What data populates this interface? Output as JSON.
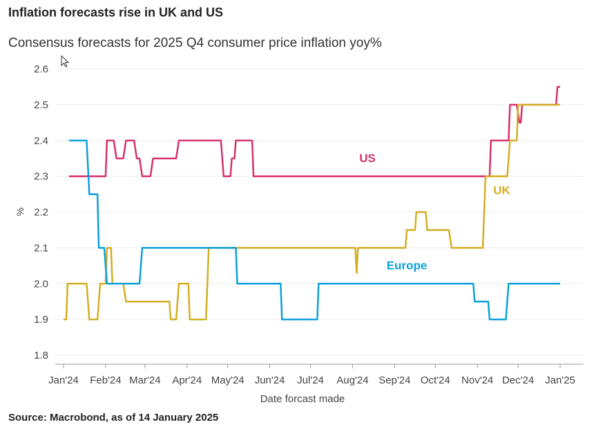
{
  "title": "Inflation forecasts rise in UK and US",
  "subtitle": "Consensus forecasts for 2025 Q4 consumer price inflation yoy%",
  "source": "Source: Macrobond, as of 14 January 2025",
  "chart_data": {
    "type": "line",
    "xlabel": "Date forcast made",
    "ylabel": "%",
    "ylim": [
      1.8,
      2.6
    ],
    "xlim": [
      "2024-01-01",
      "2025-01-01"
    ],
    "yticks": [
      "1.8",
      "1.9",
      "2.0",
      "2.1",
      "2.2",
      "2.3",
      "2.4",
      "2.5",
      "2.6"
    ],
    "xticks": [
      {
        "date": "2024-01-01",
        "label": "Jan'24"
      },
      {
        "date": "2024-02-01",
        "label": "Feb'24"
      },
      {
        "date": "2024-03-01",
        "label": "Mar'24"
      },
      {
        "date": "2024-04-01",
        "label": "Apr'24"
      },
      {
        "date": "2024-05-01",
        "label": "May'24"
      },
      {
        "date": "2024-06-01",
        "label": "Jun'24"
      },
      {
        "date": "2024-07-01",
        "label": "Jul'24"
      },
      {
        "date": "2024-08-01",
        "label": "Aug'24"
      },
      {
        "date": "2024-09-01",
        "label": "Sep'24"
      },
      {
        "date": "2024-10-01",
        "label": "Oct'24"
      },
      {
        "date": "2024-11-01",
        "label": "Nov'24"
      },
      {
        "date": "2024-12-01",
        "label": "Dec'24"
      },
      {
        "date": "2025-01-01",
        "label": "Jan'25"
      }
    ],
    "grid": true,
    "series": [
      {
        "name": "US",
        "color": "#d62f6e",
        "points": [
          [
            "2024-01-05",
            2.3
          ],
          [
            "2024-02-01",
            2.3
          ],
          [
            "2024-02-02",
            2.4
          ],
          [
            "2024-02-07",
            2.4
          ],
          [
            "2024-02-09",
            2.35
          ],
          [
            "2024-02-14",
            2.35
          ],
          [
            "2024-02-16",
            2.4
          ],
          [
            "2024-02-22",
            2.4
          ],
          [
            "2024-02-24",
            2.35
          ],
          [
            "2024-02-26",
            2.35
          ],
          [
            "2024-02-28",
            2.3
          ],
          [
            "2024-03-05",
            2.3
          ],
          [
            "2024-03-07",
            2.35
          ],
          [
            "2024-03-24",
            2.35
          ],
          [
            "2024-03-26",
            2.4
          ],
          [
            "2024-04-26",
            2.4
          ],
          [
            "2024-04-28",
            2.3
          ],
          [
            "2024-05-03",
            2.3
          ],
          [
            "2024-05-04",
            2.35
          ],
          [
            "2024-05-06",
            2.35
          ],
          [
            "2024-05-07",
            2.4
          ],
          [
            "2024-05-19",
            2.4
          ],
          [
            "2024-05-20",
            2.3
          ],
          [
            "2024-11-10",
            2.3
          ],
          [
            "2024-11-11",
            2.4
          ],
          [
            "2024-11-24",
            2.4
          ],
          [
            "2024-11-25",
            2.5
          ],
          [
            "2024-11-30",
            2.5
          ],
          [
            "2024-12-02",
            2.45
          ],
          [
            "2024-12-03",
            2.45
          ],
          [
            "2024-12-04",
            2.5
          ],
          [
            "2024-12-29",
            2.5
          ],
          [
            "2024-12-30",
            2.55
          ],
          [
            "2025-01-01",
            2.55
          ]
        ]
      },
      {
        "name": "UK",
        "color": "#d4ae22",
        "points": [
          [
            "2024-01-01",
            1.9
          ],
          [
            "2024-01-03",
            1.9
          ],
          [
            "2024-01-04",
            2.0
          ],
          [
            "2024-01-18",
            2.0
          ],
          [
            "2024-01-20",
            1.9
          ],
          [
            "2024-01-26",
            1.9
          ],
          [
            "2024-01-28",
            2.0
          ],
          [
            "2024-02-01",
            2.0
          ],
          [
            "2024-02-02",
            2.1
          ],
          [
            "2024-02-05",
            2.1
          ],
          [
            "2024-02-06",
            2.0
          ],
          [
            "2024-02-14",
            2.0
          ],
          [
            "2024-02-16",
            1.95
          ],
          [
            "2024-03-19",
            1.95
          ],
          [
            "2024-03-20",
            1.9
          ],
          [
            "2024-03-24",
            1.9
          ],
          [
            "2024-03-26",
            2.0
          ],
          [
            "2024-04-02",
            2.0
          ],
          [
            "2024-04-03",
            1.9
          ],
          [
            "2024-04-15",
            1.9
          ],
          [
            "2024-04-17",
            2.1
          ],
          [
            "2024-08-03",
            2.1
          ],
          [
            "2024-08-04",
            2.03
          ],
          [
            "2024-08-05",
            2.1
          ],
          [
            "2024-09-09",
            2.1
          ],
          [
            "2024-09-10",
            2.15
          ],
          [
            "2024-09-16",
            2.15
          ],
          [
            "2024-09-17",
            2.2
          ],
          [
            "2024-09-24",
            2.2
          ],
          [
            "2024-09-25",
            2.15
          ],
          [
            "2024-10-11",
            2.15
          ],
          [
            "2024-10-13",
            2.1
          ],
          [
            "2024-11-05",
            2.1
          ],
          [
            "2024-11-07",
            2.3
          ],
          [
            "2024-11-23",
            2.3
          ],
          [
            "2024-11-25",
            2.4
          ],
          [
            "2024-11-30",
            2.4
          ],
          [
            "2024-12-01",
            2.5
          ],
          [
            "2025-01-01",
            2.5
          ]
        ]
      },
      {
        "name": "Europe",
        "color": "#0aa0dc",
        "points": [
          [
            "2024-01-05",
            2.4
          ],
          [
            "2024-01-18",
            2.4
          ],
          [
            "2024-01-20",
            2.25
          ],
          [
            "2024-01-26",
            2.25
          ],
          [
            "2024-01-27",
            2.1
          ],
          [
            "2024-01-31",
            2.1
          ],
          [
            "2024-02-02",
            2.0
          ],
          [
            "2024-02-26",
            2.0
          ],
          [
            "2024-02-28",
            2.1
          ],
          [
            "2024-05-07",
            2.1
          ],
          [
            "2024-05-08",
            2.0
          ],
          [
            "2024-06-09",
            2.0
          ],
          [
            "2024-06-10",
            1.9
          ],
          [
            "2024-07-06",
            1.9
          ],
          [
            "2024-07-07",
            2.0
          ],
          [
            "2024-10-29",
            2.0
          ],
          [
            "2024-10-30",
            1.95
          ],
          [
            "2024-11-09",
            1.95
          ],
          [
            "2024-11-10",
            1.9
          ],
          [
            "2024-11-22",
            1.9
          ],
          [
            "2024-11-24",
            2.0
          ],
          [
            "2025-01-01",
            2.0
          ]
        ]
      }
    ],
    "annotations": [
      {
        "text": "US",
        "series": "US",
        "date": "2024-08-12",
        "value": 2.34
      },
      {
        "text": "UK",
        "series": "UK",
        "date": "2024-11-19",
        "value": 2.25
      },
      {
        "text": "Europe",
        "series": "Europe",
        "date": "2024-09-10",
        "value": 2.04
      }
    ]
  }
}
